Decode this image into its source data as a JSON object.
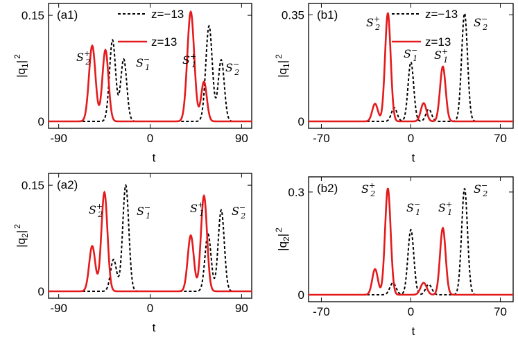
{
  "chart_data": [
    {
      "type": "line",
      "panel_label": "(a1)",
      "xlabel": "t",
      "ylabel": "|q1|^2",
      "xlim": [
        -100,
        100
      ],
      "ylim": [
        0,
        0.155
      ],
      "xticks": [
        "-90",
        "0",
        "90"
      ],
      "yticks": [
        "0",
        "0.15"
      ],
      "legend": {
        "placement": "top",
        "entries": [
          {
            "label": "z=−13",
            "style": "dashed",
            "color": "#000000"
          },
          {
            "label": "z=13",
            "style": "solid",
            "color": "#e41a1c"
          }
        ]
      },
      "annotations": [
        "S2+",
        "S1−",
        "S1+",
        "S2−"
      ],
      "series": [
        {
          "name": "z=−13",
          "color": "#000000",
          "dash": true,
          "peaks": [
            [
              -37,
              0.115,
              3.0
            ],
            [
              -26,
              0.088,
              3.0
            ],
            [
              58,
              0.135,
              3.2
            ],
            [
              70,
              0.087,
              3.0
            ]
          ]
        },
        {
          "name": "z=13",
          "color": "#e41a1c",
          "dash": false,
          "peaks": [
            [
              -57,
              0.107,
              3.2
            ],
            [
              -44,
              0.101,
              3.0
            ],
            [
              40,
              0.155,
              3.4
            ],
            [
              53,
              0.056,
              2.8
            ]
          ]
        }
      ]
    },
    {
      "type": "line",
      "panel_label": "(b1)",
      "xlabel": "t",
      "ylabel": "|q1|^2",
      "xlim": [
        -80,
        80
      ],
      "ylim": [
        0,
        0.36
      ],
      "xticks": [
        "-70",
        "0",
        "70"
      ],
      "yticks": [
        "0",
        "0.35"
      ],
      "legend": {
        "placement": "top",
        "entries": [
          {
            "label": "z=−13",
            "style": "dashed",
            "color": "#000000"
          },
          {
            "label": "z=13",
            "style": "solid",
            "color": "#e41a1c"
          }
        ]
      },
      "annotations": [
        "S2+",
        "S1−",
        "S1+",
        "S2−"
      ],
      "series": [
        {
          "name": "z=−13",
          "color": "#000000",
          "dash": true,
          "peaks": [
            [
              -13,
              0.045,
              2.2
            ],
            [
              0,
              0.195,
              2.2
            ],
            [
              14,
              0.04,
              2.2
            ],
            [
              42,
              0.355,
              2.3
            ]
          ]
        },
        {
          "name": "z=13",
          "color": "#e41a1c",
          "dash": false,
          "peaks": [
            [
              -28,
              0.058,
              2.2
            ],
            [
              -18,
              0.355,
              2.2
            ],
            [
              10,
              0.06,
              2.2
            ],
            [
              25,
              0.18,
              2.2
            ]
          ]
        }
      ]
    },
    {
      "type": "line",
      "panel_label": "(a2)",
      "xlabel": "t",
      "ylabel": "|q2|^2",
      "xlim": [
        -100,
        100
      ],
      "ylim": [
        0,
        0.155
      ],
      "xticks": [
        "-90",
        "0",
        "90"
      ],
      "yticks": [
        "0",
        "0.15"
      ],
      "annotations": [
        "S2+",
        "S1−",
        "S1+",
        "S2−"
      ],
      "series": [
        {
          "name": "z=−13",
          "color": "#000000",
          "dash": true,
          "peaks": [
            [
              -36,
              0.045,
              3.0
            ],
            [
              -24,
              0.15,
              3.0
            ],
            [
              57,
              0.081,
              3.0
            ],
            [
              70,
              0.115,
              3.0
            ]
          ]
        },
        {
          "name": "z=13",
          "color": "#e41a1c",
          "dash": false,
          "peaks": [
            [
              -57,
              0.064,
              3.0
            ],
            [
              -45,
              0.14,
              3.0
            ],
            [
              40,
              0.079,
              3.0
            ],
            [
              53,
              0.135,
              3.0
            ]
          ]
        }
      ]
    },
    {
      "type": "line",
      "panel_label": "(b2)",
      "xlabel": "t",
      "ylabel": "|q2|^2",
      "xlim": [
        -80,
        80
      ],
      "ylim": [
        0,
        0.32
      ],
      "xticks": [
        "-70",
        "0",
        "70"
      ],
      "yticks": [
        "0",
        "0.3"
      ],
      "annotations": [
        "S2+",
        "S1−",
        "S1+",
        "S2−"
      ],
      "series": [
        {
          "name": "z=−13",
          "color": "#000000",
          "dash": true,
          "peaks": [
            [
              -14,
              0.035,
              2.4
            ],
            [
              0,
              0.19,
              2.3
            ],
            [
              14,
              0.03,
              2.4
            ],
            [
              42,
              0.31,
              2.3
            ]
          ]
        },
        {
          "name": "z=13",
          "color": "#e41a1c",
          "dash": false,
          "peaks": [
            [
              -28,
              0.075,
              2.2
            ],
            [
              -18,
              0.31,
              2.2
            ],
            [
              10,
              0.035,
              2.4
            ],
            [
              25,
              0.195,
              2.2
            ]
          ]
        }
      ]
    }
  ]
}
